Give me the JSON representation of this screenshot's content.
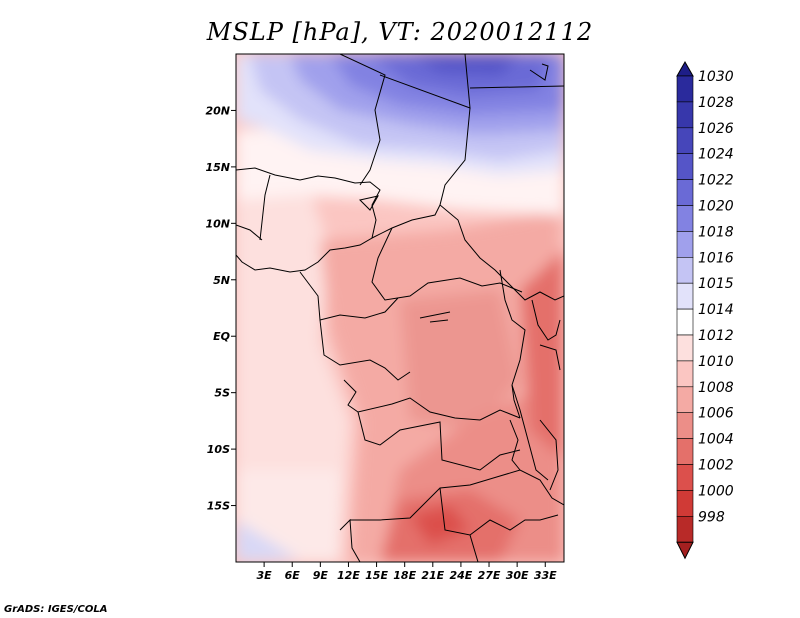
{
  "title": "MSLP [hPa], VT: 2020012112",
  "credit": "GrADS: IGES/COLA",
  "map": {
    "variable": "MSLP",
    "units": "hPa",
    "valid_time": "2020012112",
    "lon_range": [
      0,
      35
    ],
    "lat_range": [
      -20,
      25
    ],
    "lon_ticks": [
      {
        "value": 3,
        "label": "3E"
      },
      {
        "value": 6,
        "label": "6E"
      },
      {
        "value": 9,
        "label": "9E"
      },
      {
        "value": 12,
        "label": "12E"
      },
      {
        "value": 15,
        "label": "15E"
      },
      {
        "value": 18,
        "label": "18E"
      },
      {
        "value": 21,
        "label": "21E"
      },
      {
        "value": 24,
        "label": "24E"
      },
      {
        "value": 27,
        "label": "27E"
      },
      {
        "value": 30,
        "label": "30E"
      },
      {
        "value": 33,
        "label": "33E"
      }
    ],
    "lat_ticks": [
      {
        "value": 20,
        "label": "20N"
      },
      {
        "value": 15,
        "label": "15N"
      },
      {
        "value": 10,
        "label": "10N"
      },
      {
        "value": 5,
        "label": "5N"
      },
      {
        "value": 0,
        "label": "EQ"
      },
      {
        "value": -5,
        "label": "5S"
      },
      {
        "value": -10,
        "label": "10S"
      },
      {
        "value": -15,
        "label": "15S"
      }
    ]
  },
  "colorbar": {
    "levels": [
      {
        "label": "1030",
        "color": "#2a2a9c"
      },
      {
        "label": "1028",
        "color": "#3737ab"
      },
      {
        "label": "1026",
        "color": "#4646ba"
      },
      {
        "label": "1024",
        "color": "#5555c8"
      },
      {
        "label": "1022",
        "color": "#6a6ad6"
      },
      {
        "label": "1020",
        "color": "#8282e2"
      },
      {
        "label": "1018",
        "color": "#a0a0ec"
      },
      {
        "label": "1016",
        "color": "#c4c4f4"
      },
      {
        "label": "1015",
        "color": "#e2e2fa"
      },
      {
        "label": "1014",
        "color": "#ffffff"
      },
      {
        "label": "1012",
        "color": "#fde0de"
      },
      {
        "label": "1010",
        "color": "#fbc6c2"
      },
      {
        "label": "1008",
        "color": "#f4aaa4"
      },
      {
        "label": "1006",
        "color": "#ec8e88"
      },
      {
        "label": "1004",
        "color": "#e4706a"
      },
      {
        "label": "1002",
        "color": "#dc504c"
      },
      {
        "label": "1000",
        "color": "#d03a36"
      },
      {
        "label": "998",
        "color": "#b82a28"
      }
    ],
    "top_arrow_color": "#1e1e88",
    "bottom_arrow_color": "#a42020"
  }
}
